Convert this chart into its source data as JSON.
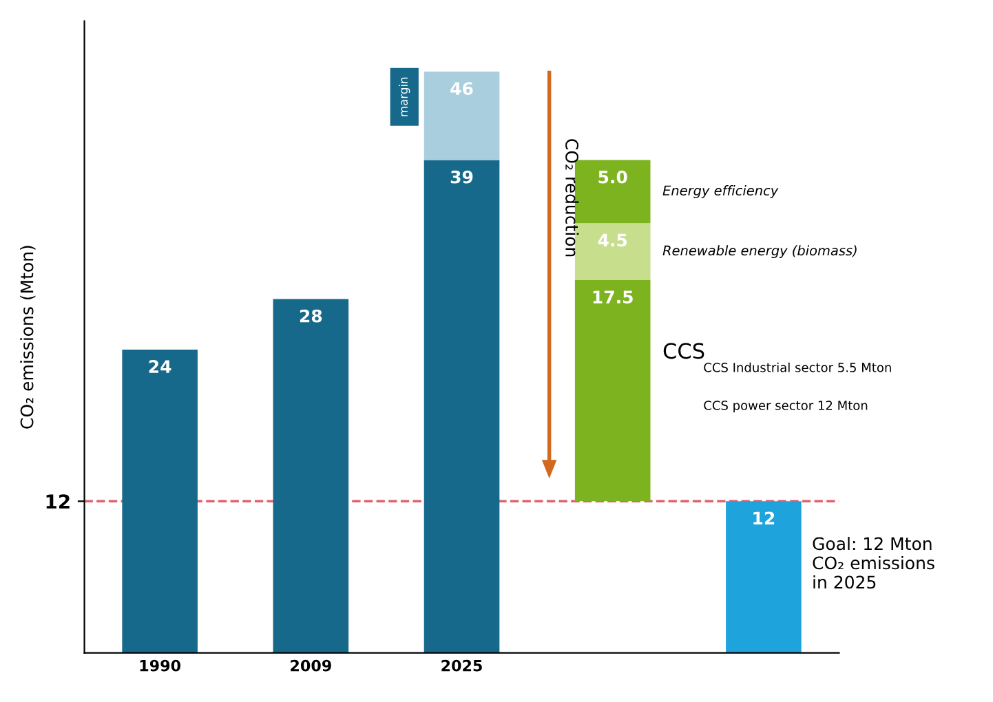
{
  "chart_data": {
    "type": "bar",
    "ylabel": "CO₂ emissions (Mton)",
    "categories": [
      "1990",
      "2009",
      "2025",
      null,
      null
    ],
    "ylim": [
      0,
      50
    ],
    "yticks": [
      12
    ],
    "grid": false,
    "series": [
      {
        "colors": [
          "#17698c",
          "#17698c",
          "#17698c",
          null,
          "#1fa3dd"
        ],
        "values": [
          24,
          28,
          39,
          null,
          12
        ],
        "value_labels": [
          "24",
          "28",
          "39",
          null,
          "12"
        ]
      },
      {
        "color": "#a9cfdf",
        "values": [
          null,
          null,
          7,
          null,
          null
        ],
        "base": [
          null,
          null,
          39,
          null,
          null
        ],
        "value_labels": [
          null,
          null,
          "46",
          null,
          null
        ]
      },
      {
        "name": "CCS",
        "color": "#7db31f",
        "values": [
          null,
          null,
          null,
          17.5,
          null
        ],
        "base": [
          null,
          null,
          null,
          12,
          null
        ],
        "value_labels": [
          null,
          null,
          null,
          "17.5",
          null
        ]
      },
      {
        "name": "Renewable energy (biomass)",
        "color": "#c7de8c",
        "values": [
          null,
          null,
          null,
          4.5,
          null
        ],
        "base": [
          null,
          null,
          null,
          29.5,
          null
        ],
        "value_labels": [
          null,
          null,
          null,
          "4.5",
          null
        ]
      },
      {
        "name": "Energy efficiency",
        "color": "#7db31f",
        "values": [
          null,
          null,
          null,
          5.0,
          null
        ],
        "base": [
          null,
          null,
          null,
          34,
          null
        ],
        "value_labels": [
          null,
          null,
          null,
          "5.0",
          null
        ]
      }
    ],
    "ref_lines": [
      {
        "axis": "y",
        "value": 12,
        "color": "#e06070",
        "line_style": "dashed"
      }
    ],
    "annotations": [
      "margin",
      "CO₂ reduction",
      "CCS Industrial sector 5.5 Mton",
      "CCS power sector 12 Mton",
      "Goal: 12 Mton\nCO₂ emissions\nin 2025"
    ]
  }
}
